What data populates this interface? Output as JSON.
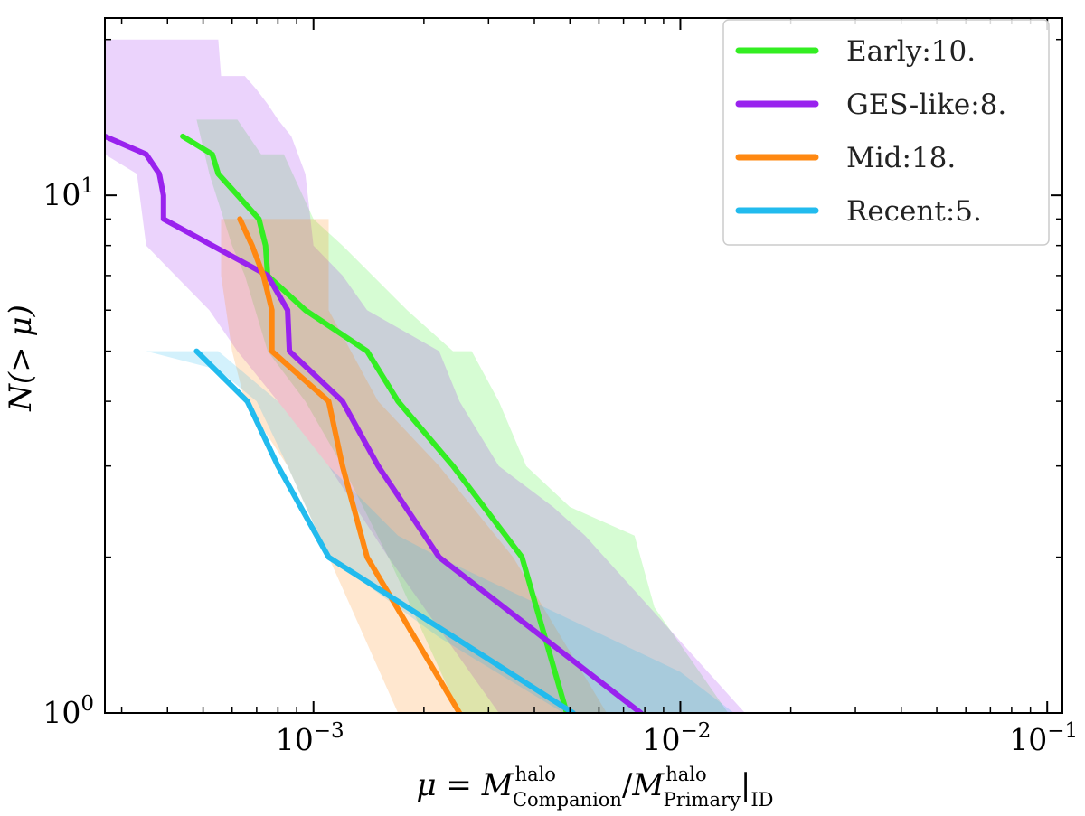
{
  "chart_data": {
    "type": "line",
    "xscale": "log",
    "yscale": "log",
    "xlim": [
      0.00027,
      0.11
    ],
    "ylim": [
      1,
      22
    ],
    "xlabel": {
      "mu": "μ",
      "eq": " = ",
      "m1": "M",
      "sup1": "halo",
      "sub1": "Companion",
      "slash": "/",
      "m2": "M",
      "sup2": "halo",
      "sub2": "Primary",
      "bar": "|",
      "sub3": "ID"
    },
    "ylabel": "N(> μ)",
    "xticks": [
      {
        "base": "10",
        "exp": "−3",
        "value": 0.001
      },
      {
        "base": "10",
        "exp": "−2",
        "value": 0.01
      },
      {
        "base": "10",
        "exp": "−1",
        "value": 0.1
      }
    ],
    "yticks": [
      {
        "base": "10",
        "exp": "0",
        "value": 1
      },
      {
        "base": "10",
        "exp": "1",
        "value": 10
      }
    ],
    "legend": {
      "placement": "top-right"
    },
    "series": [
      {
        "name": "Early",
        "label": "Early:10.",
        "color": "#33ee22",
        "line": [
          [
            0.00044,
            13
          ],
          [
            0.00053,
            12
          ],
          [
            0.00055,
            11
          ],
          [
            0.00071,
            9
          ],
          [
            0.00074,
            8
          ],
          [
            0.00075,
            7
          ],
          [
            0.00095,
            6
          ],
          [
            0.0014,
            5
          ],
          [
            0.0017,
            4
          ],
          [
            0.0024,
            3
          ],
          [
            0.0037,
            2
          ],
          [
            0.0049,
            1
          ]
        ],
        "band_upper": [
          [
            0.00048,
            14
          ],
          [
            0.00062,
            14
          ],
          [
            0.00072,
            12
          ],
          [
            0.00083,
            12
          ],
          [
            0.001,
            9
          ],
          [
            0.0012,
            8
          ],
          [
            0.0018,
            6
          ],
          [
            0.0024,
            5
          ],
          [
            0.0027,
            5
          ],
          [
            0.0032,
            4
          ],
          [
            0.0038,
            3
          ],
          [
            0.005,
            2.5
          ],
          [
            0.0075,
            2.2
          ],
          [
            0.0085,
            1.6
          ],
          [
            0.0135,
            1
          ]
        ],
        "band_lower": [
          [
            0.0025,
            1
          ],
          [
            0.0016,
            2
          ],
          [
            0.0012,
            3
          ],
          [
            0.00095,
            4
          ],
          [
            0.00075,
            5
          ],
          [
            0.00065,
            7
          ],
          [
            0.0006,
            8
          ],
          [
            0.00052,
            11
          ],
          [
            0.00048,
            14
          ]
        ]
      },
      {
        "name": "GES-like",
        "label": "GES-like:8.",
        "color": "#9922ee",
        "line": [
          [
            0.00027,
            13
          ],
          [
            0.00035,
            12
          ],
          [
            0.00038,
            11
          ],
          [
            0.00039,
            10
          ],
          [
            0.00039,
            9
          ],
          [
            0.00075,
            7
          ],
          [
            0.00085,
            6
          ],
          [
            0.00086,
            5
          ],
          [
            0.0012,
            4
          ],
          [
            0.0015,
            3
          ],
          [
            0.0022,
            2
          ],
          [
            0.0078,
            1
          ]
        ],
        "band_upper": [
          [
            0.00027,
            20
          ],
          [
            0.00055,
            20
          ],
          [
            0.00056,
            17
          ],
          [
            0.00065,
            17
          ],
          [
            0.0007,
            16
          ],
          [
            0.00075,
            15
          ],
          [
            0.0008,
            14
          ],
          [
            0.00087,
            13
          ],
          [
            0.00095,
            11
          ],
          [
            0.001,
            8
          ],
          [
            0.0012,
            7
          ],
          [
            0.0014,
            6
          ],
          [
            0.0022,
            5
          ],
          [
            0.0025,
            4
          ],
          [
            0.0032,
            3
          ],
          [
            0.0045,
            2.5
          ],
          [
            0.0055,
            2.2
          ],
          [
            0.015,
            1
          ]
        ],
        "band_lower": [
          [
            0.0032,
            1
          ],
          [
            0.0016,
            2
          ],
          [
            0.0011,
            3
          ],
          [
            0.0008,
            4
          ],
          [
            0.00062,
            5
          ],
          [
            0.00052,
            6
          ],
          [
            0.00042,
            7
          ],
          [
            0.00035,
            8
          ],
          [
            0.00033,
            11
          ],
          [
            0.00027,
            12
          ]
        ]
      },
      {
        "name": "Mid",
        "label": "Mid:18.",
        "color": "#ff8811",
        "line": [
          [
            0.00063,
            9
          ],
          [
            0.00068,
            8
          ],
          [
            0.00073,
            7
          ],
          [
            0.00077,
            6
          ],
          [
            0.00077,
            5
          ],
          [
            0.0011,
            4
          ],
          [
            0.0012,
            3
          ],
          [
            0.0014,
            2
          ],
          [
            0.0025,
            1
          ]
        ],
        "band_upper": [
          [
            0.00057,
            9
          ],
          [
            0.0011,
            9
          ],
          [
            0.0011,
            6
          ],
          [
            0.0015,
            4
          ],
          [
            0.0022,
            3
          ],
          [
            0.0035,
            2
          ],
          [
            0.0063,
            1
          ]
        ],
        "band_lower": [
          [
            0.0017,
            1
          ],
          [
            0.0011,
            2
          ],
          [
            0.00085,
            3
          ],
          [
            0.00065,
            4
          ],
          [
            0.0006,
            5
          ],
          [
            0.00056,
            7
          ],
          [
            0.00056,
            9
          ]
        ]
      },
      {
        "name": "Recent",
        "label": "Recent:5.",
        "color": "#22bbee",
        "line": [
          [
            0.00048,
            5
          ],
          [
            0.00066,
            4
          ],
          [
            0.0008,
            3
          ],
          [
            0.0011,
            2
          ],
          [
            0.0051,
            1
          ]
        ],
        "band_upper": [
          [
            0.00032,
            5
          ],
          [
            0.00055,
            5
          ],
          [
            0.0008,
            4
          ],
          [
            0.0011,
            3
          ],
          [
            0.0017,
            2.2
          ],
          [
            0.0022,
            2
          ],
          [
            0.01,
            1.2
          ],
          [
            0.014,
            1
          ]
        ],
        "band_lower": [
          [
            0.0048,
            1
          ],
          [
            0.0022,
            1.4
          ],
          [
            0.0011,
            2
          ],
          [
            0.00085,
            3
          ],
          [
            0.0007,
            4
          ],
          [
            0.00055,
            4.6
          ],
          [
            0.00035,
            5
          ]
        ]
      }
    ]
  }
}
